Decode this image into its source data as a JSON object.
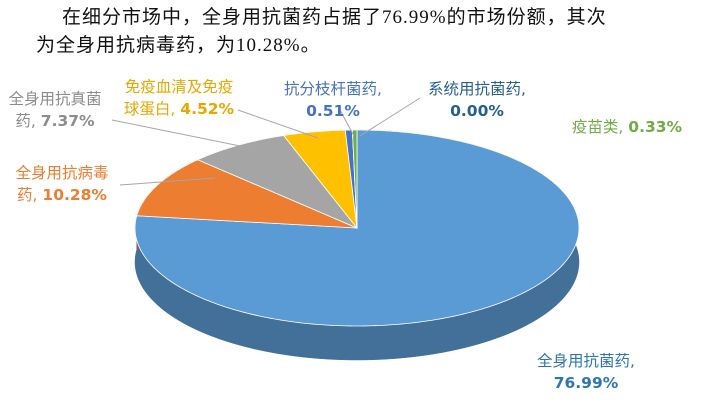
{
  "chart_data": {
    "type": "pie3d",
    "title_lines": [
      "在细分市场中，全身用抗菌药占据了76.99%的市场份额，其次",
      "为全身用抗病毒药，为10.28%。"
    ],
    "categories": [
      "全身用抗菌药",
      "全身用抗病毒药",
      "全身用抗真菌药",
      "免疫血清及免疫球蛋白",
      "抗分枝杆菌药",
      "系统用抗菌药",
      "疫苗类"
    ],
    "values": [
      76.99,
      10.28,
      7.37,
      4.52,
      0.51,
      0.0,
      0.33
    ],
    "value_labels": [
      "76.99%",
      "10.28%",
      "7.37%",
      "4.52%",
      "0.51%",
      "0.00%",
      "0.33%"
    ],
    "label_separator": ",",
    "colors": [
      "#5b9bd5",
      "#ed7d31",
      "#a5a5a5",
      "#ffc000",
      "#4472c4",
      "#255e91",
      "#70ad47"
    ]
  }
}
